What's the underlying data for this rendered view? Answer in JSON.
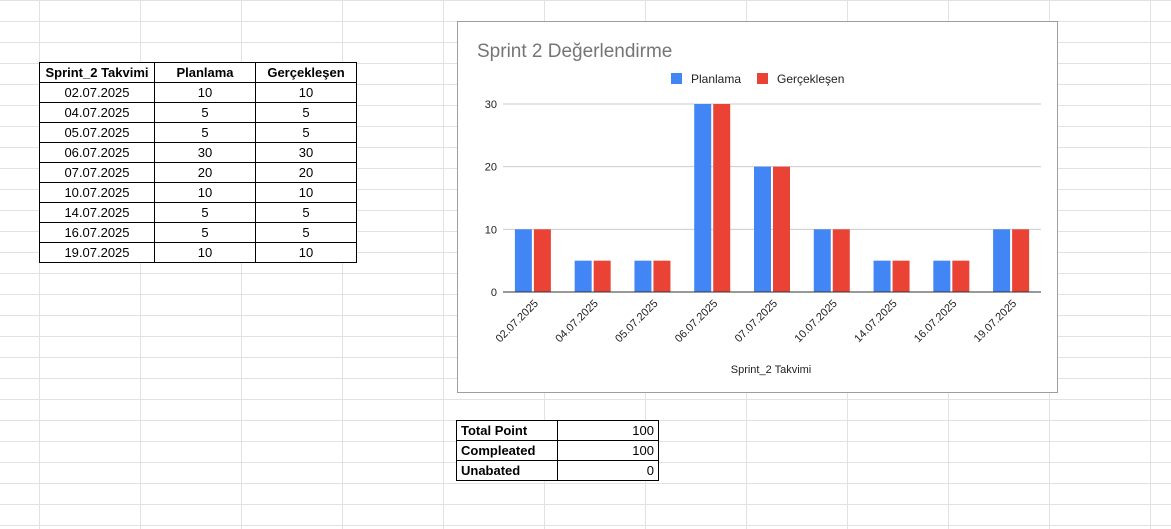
{
  "sprint_table": {
    "headers": [
      "Sprint_2 Takvimi",
      "Planlama",
      "Gerçekleşen"
    ],
    "rows": [
      [
        "02.07.2025",
        "10",
        "10"
      ],
      [
        "04.07.2025",
        "5",
        "5"
      ],
      [
        "05.07.2025",
        "5",
        "5"
      ],
      [
        "06.07.2025",
        "30",
        "30"
      ],
      [
        "07.07.2025",
        "20",
        "20"
      ],
      [
        "10.07.2025",
        "10",
        "10"
      ],
      [
        "14.07.2025",
        "5",
        "5"
      ],
      [
        "16.07.2025",
        "5",
        "5"
      ],
      [
        "19.07.2025",
        "10",
        "10"
      ]
    ]
  },
  "summary": {
    "total_label": "Total Point",
    "total_value": "100",
    "completed_label": "Compleated",
    "completed_value": "100",
    "unabated_label": "Unabated",
    "unabated_value": "0"
  },
  "chart_data": {
    "type": "bar",
    "title": "Sprint 2 Değerlendirme",
    "xlabel": "Sprint_2 Takvimi",
    "ylabel": "",
    "categories": [
      "02.07.2025",
      "04.07.2025",
      "05.07.2025",
      "06.07.2025",
      "07.07.2025",
      "10.07.2025",
      "14.07.2025",
      "16.07.2025",
      "19.07.2025"
    ],
    "series": [
      {
        "name": "Planlama",
        "values": [
          10,
          5,
          5,
          30,
          20,
          10,
          5,
          5,
          10
        ],
        "color": "#4285f4"
      },
      {
        "name": "Gerçekleşen",
        "values": [
          10,
          5,
          5,
          30,
          20,
          10,
          5,
          5,
          10
        ],
        "color": "#ea4335"
      }
    ],
    "ylim": [
      0,
      30
    ],
    "yticks": [
      0,
      10,
      20,
      30
    ],
    "grid": true,
    "legend": "top"
  }
}
